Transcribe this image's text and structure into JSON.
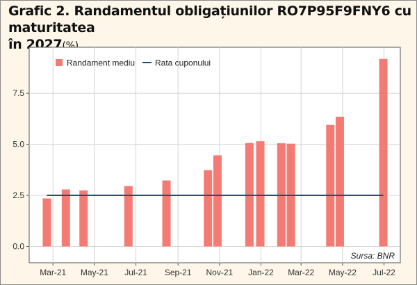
{
  "title_line1": "Grafic 2. Randamentul obligațiunilor RO7P95F9FNY6 cu maturitatea",
  "title_line2": "în 2027",
  "title_unit": "(%)",
  "source": "Sursa: BNR",
  "chart_data": {
    "type": "bar",
    "series": [
      {
        "name": "Randament mediu",
        "color": "#f47b73",
        "x": [
          "2021-02-20",
          "2021-03-20",
          "2021-04-15",
          "2021-06-20",
          "2021-08-15",
          "2021-10-15",
          "2021-10-29",
          "2021-12-15",
          "2021-12-31",
          "2022-01-31",
          "2022-02-14",
          "2022-04-13",
          "2022-04-27",
          "2022-06-30"
        ],
        "values": [
          2.35,
          2.79,
          2.74,
          2.95,
          3.23,
          3.73,
          4.46,
          5.06,
          5.15,
          5.05,
          5.03,
          5.95,
          6.35,
          9.18
        ]
      },
      {
        "name": "Rata cuponului",
        "type": "line",
        "color": "#1f4e79",
        "x": [
          "2021-02-20",
          "2022-06-30"
        ],
        "values": [
          2.5,
          2.5
        ]
      }
    ],
    "x_ticks": [
      "Mar-21",
      "May-21",
      "Jul-21",
      "Sep-21",
      "Nov-21",
      "Jan-22",
      "Mar-22",
      "May-22",
      "Jul-22"
    ],
    "x_tick_dates": [
      "2021-03-01",
      "2021-05-01",
      "2021-07-01",
      "2021-09-01",
      "2021-11-01",
      "2022-01-01",
      "2022-03-01",
      "2022-05-01",
      "2022-07-01"
    ],
    "y_ticks": [
      0.0,
      2.5,
      5.0,
      7.5
    ],
    "y_tick_labels": [
      "0.0",
      "2.5",
      "5.0",
      "7.5"
    ],
    "ylim": [
      -0.8,
      9.75
    ],
    "xlim": [
      "2021-01-25",
      "2022-07-25"
    ],
    "grid": true,
    "legend_position": "top-left"
  }
}
